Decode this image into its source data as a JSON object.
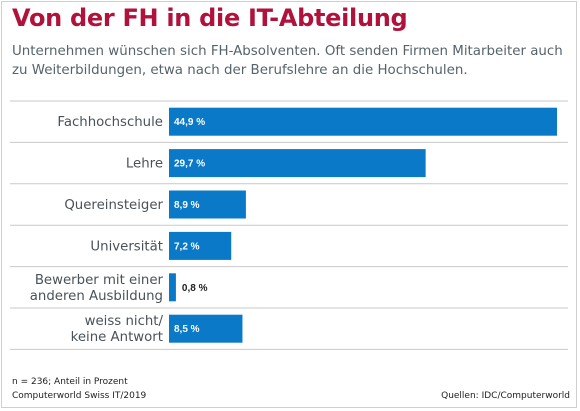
{
  "header": {
    "title": "Von der FH in die IT-Abteilung",
    "subtitle": "Unternehmen wünschen sich FH-Absolventen. Oft senden Firmen Mitarbeiter auch zu Weiterbildungen, etwa nach der Berufslehre an die Hochschulen."
  },
  "footer": {
    "note": "n = 236; Anteil in Prozent",
    "publication": "Computerworld Swiss IT/2019",
    "source": "Quellen: IDC/Computerworld"
  },
  "colors": {
    "bar": "#0a79c7",
    "title": "#b0123c",
    "category_text": "#4a5259",
    "divider": "#c9c9c9",
    "label_inside": "#ffffff",
    "label_outside": "#222222"
  },
  "chart_data": {
    "type": "bar",
    "orientation": "horizontal",
    "unit": "%",
    "categories": [
      [
        "Fachhochschule"
      ],
      [
        "Lehre"
      ],
      [
        "Quereinsteiger"
      ],
      [
        "Universität"
      ],
      [
        "Bewerber mit einer",
        "anderen Ausbildung"
      ],
      [
        "weiss nicht/",
        "keine Antwort"
      ]
    ],
    "values": [
      44.9,
      29.7,
      8.9,
      7.2,
      0.8,
      8.5
    ],
    "value_labels": [
      "44,9 %",
      "29,7 %",
      "8,9 %",
      "7,2 %",
      "0,8 %",
      "8,5 %"
    ],
    "xlim": [
      0,
      44.9
    ],
    "grid": false
  }
}
